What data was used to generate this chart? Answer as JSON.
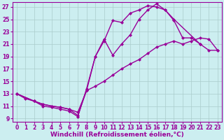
{
  "bg_color": "#cceef0",
  "grid_color": "#aacccc",
  "line_color": "#990099",
  "marker": "D",
  "markersize": 2.5,
  "linewidth": 1.0,
  "xlabel": "Windchill (Refroidissement éolien,°C)",
  "xlabel_fontsize": 6.5,
  "tick_fontsize": 5.5,
  "xlim": [
    -0.5,
    23.5
  ],
  "ylim": [
    8.5,
    27.8
  ],
  "xticks": [
    0,
    1,
    2,
    3,
    4,
    5,
    6,
    7,
    8,
    9,
    10,
    11,
    12,
    13,
    14,
    15,
    16,
    17,
    18,
    19,
    20,
    21,
    22,
    23
  ],
  "yticks": [
    9,
    11,
    13,
    15,
    17,
    19,
    21,
    23,
    25,
    27
  ],
  "curve1_x": [
    0,
    1,
    2,
    3,
    4,
    5,
    6,
    7,
    8,
    9,
    10,
    11,
    12,
    13,
    14,
    15,
    16,
    17,
    18,
    21
  ],
  "curve1_y": [
    13.0,
    12.2,
    11.8,
    11.0,
    10.8,
    10.5,
    10.2,
    9.3,
    13.8,
    19.0,
    21.5,
    24.8,
    24.5,
    26.0,
    26.5,
    27.2,
    27.0,
    26.5,
    25.0,
    21.0
  ],
  "curve2_x": [
    0,
    2,
    3,
    4,
    5,
    6,
    7,
    8,
    9,
    10,
    11,
    12,
    13,
    14,
    15,
    16,
    17,
    18,
    19,
    20,
    21,
    22,
    23
  ],
  "curve2_y": [
    13.0,
    11.8,
    11.3,
    11.0,
    10.8,
    10.5,
    10.0,
    13.5,
    14.2,
    15.0,
    16.0,
    17.0,
    17.8,
    18.5,
    19.5,
    20.5,
    21.0,
    21.5,
    21.0,
    21.5,
    22.0,
    21.8,
    20.0
  ],
  "curve3_x": [
    0,
    2,
    3,
    4,
    5,
    6,
    7,
    8,
    9,
    10,
    11,
    12,
    13,
    14,
    15,
    16,
    17,
    18,
    19,
    20,
    21,
    22,
    23
  ],
  "curve3_y": [
    13.0,
    11.8,
    11.3,
    11.0,
    10.8,
    10.5,
    9.5,
    13.5,
    19.0,
    21.8,
    19.2,
    21.0,
    22.5,
    25.0,
    26.5,
    27.5,
    26.5,
    24.8,
    22.0,
    22.0,
    21.0,
    20.0,
    20.0
  ]
}
